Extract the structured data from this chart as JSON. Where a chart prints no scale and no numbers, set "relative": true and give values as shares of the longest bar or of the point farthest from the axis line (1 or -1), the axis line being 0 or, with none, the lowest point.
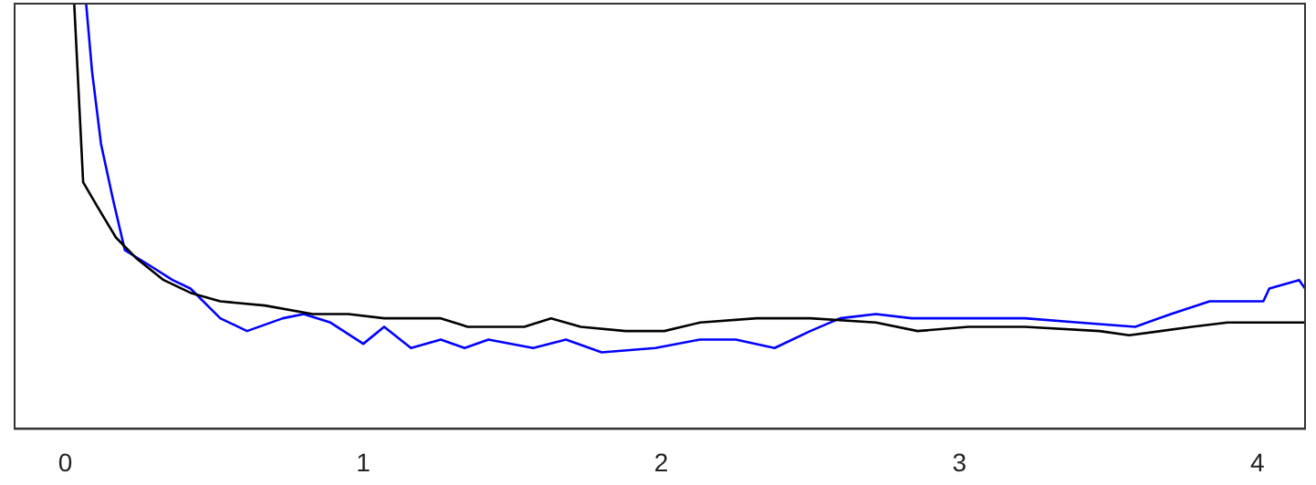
{
  "chart_data": {
    "type": "line",
    "relative": true,
    "grid": false,
    "legend": false,
    "marker": "none",
    "line_style": "solid",
    "xlim": [
      -0.17,
      4.16
    ],
    "xticks": [
      0,
      1,
      2,
      3,
      4
    ],
    "series": [
      {
        "color": "#000000",
        "x": [
          0.03,
          0.06,
          0.11,
          0.17,
          0.24,
          0.33,
          0.42,
          0.52,
          0.67,
          0.83,
          0.95,
          1.07,
          1.26,
          1.35,
          1.54,
          1.63,
          1.73,
          1.88,
          2.01,
          2.13,
          2.32,
          2.5,
          2.72,
          2.86,
          3.03,
          3.22,
          3.47,
          3.57,
          3.78,
          3.9,
          4.16
        ],
        "values": [
          1,
          0.58,
          0.52,
          0.45,
          0.4,
          0.35,
          0.32,
          0.3,
          0.29,
          0.27,
          0.27,
          0.26,
          0.26,
          0.24,
          0.24,
          0.26,
          0.24,
          0.23,
          0.23,
          0.25,
          0.26,
          0.26,
          0.25,
          0.23,
          0.24,
          0.24,
          0.23,
          0.22,
          0.24,
          0.25,
          0.25
        ]
      },
      {
        "color": "#0000ff",
        "x": [
          0.07,
          0.09,
          0.12,
          0.16,
          0.2,
          0.27,
          0.36,
          0.42,
          0.52,
          0.61,
          0.73,
          0.8,
          0.89,
          1.0,
          1.07,
          1.16,
          1.26,
          1.34,
          1.42,
          1.57,
          1.68,
          1.8,
          1.98,
          2.13,
          2.25,
          2.38,
          2.5,
          2.6,
          2.72,
          2.84,
          2.97,
          3.22,
          3.4,
          3.59,
          3.71,
          3.84,
          4.02,
          4.04,
          4.14,
          4.16
        ],
        "values": [
          1,
          0.84,
          0.67,
          0.54,
          0.42,
          0.39,
          0.35,
          0.33,
          0.26,
          0.23,
          0.26,
          0.27,
          0.25,
          0.2,
          0.24,
          0.19,
          0.21,
          0.19,
          0.21,
          0.19,
          0.21,
          0.18,
          0.19,
          0.21,
          0.21,
          0.19,
          0.23,
          0.26,
          0.27,
          0.26,
          0.26,
          0.26,
          0.25,
          0.24,
          0.27,
          0.3,
          0.3,
          0.33,
          0.35,
          0.33
        ]
      }
    ]
  }
}
